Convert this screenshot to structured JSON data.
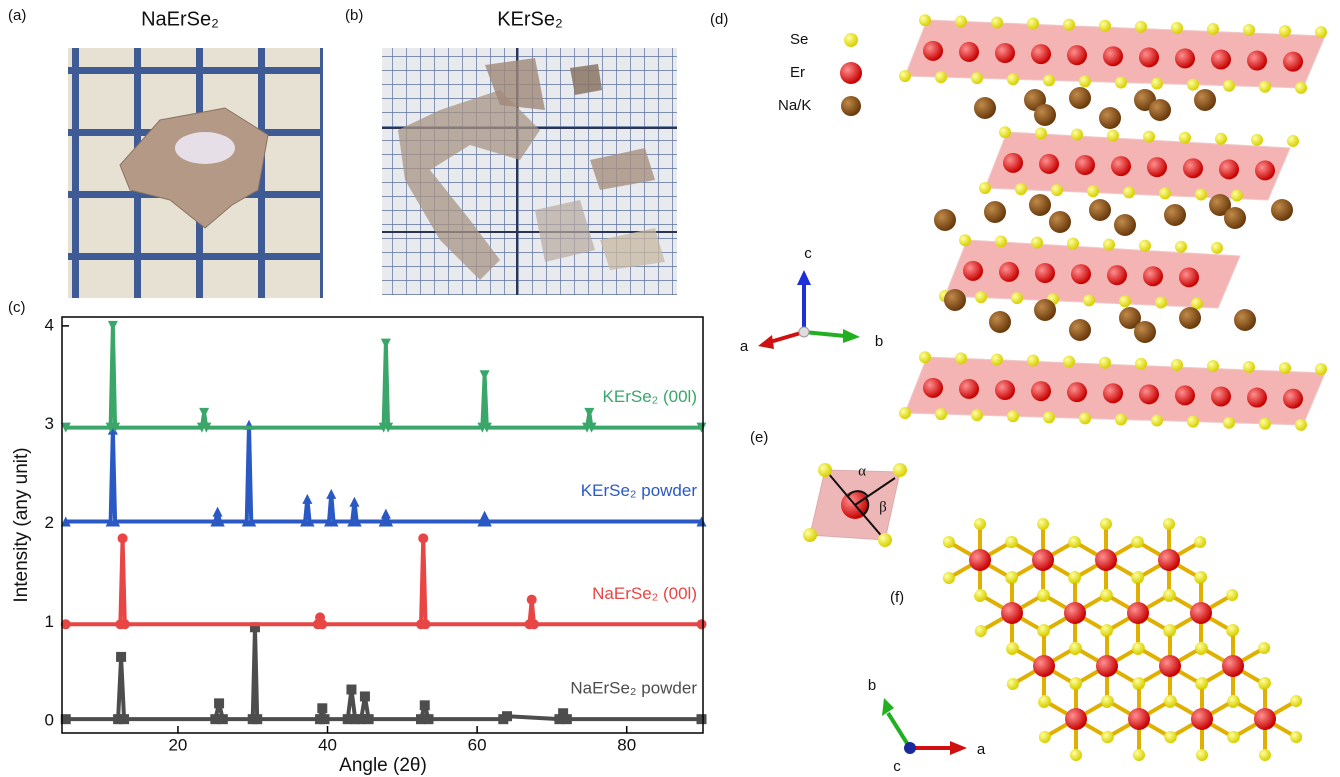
{
  "panels": {
    "a": {
      "label": "(a)",
      "title": "NaErSe₂"
    },
    "b": {
      "label": "(b)",
      "title": "KErSe₂"
    },
    "c": {
      "label": "(c)"
    },
    "d": {
      "label": "(d)",
      "legend": [
        "Se",
        "Er",
        "Na/K"
      ],
      "axes": [
        "c",
        "a",
        "b"
      ]
    },
    "e": {
      "label": "(e)",
      "angles": [
        "α",
        "β"
      ]
    },
    "f": {
      "label": "(f)",
      "axes": [
        "b",
        "a",
        "c"
      ]
    }
  },
  "chart_data": {
    "type": "line",
    "xlabel": "Angle (2θ)",
    "ylabel": "Intensity (any unit)",
    "xlim": [
      4.5,
      90.2
    ],
    "ylim": [
      -0.12,
      4.09
    ],
    "xticks": [
      20,
      40,
      60,
      80
    ],
    "yticks": [
      0,
      1,
      2,
      3,
      4
    ],
    "series": [
      {
        "name": "NaErSe₂ powder",
        "color": "#4d4d4d",
        "marker": "square",
        "x": [
          5,
          12,
          12.4,
          12.8,
          25,
          25.5,
          26,
          30,
          30.3,
          30.6,
          39,
          39.3,
          39.6,
          42.7,
          43.2,
          43.7,
          44.5,
          45,
          45.5,
          52.5,
          53,
          53.5,
          63.5,
          64,
          71,
          71.5,
          72,
          90
        ],
        "values": [
          0.02,
          0.02,
          0.65,
          0.02,
          0.02,
          0.18,
          0.02,
          0.02,
          0.95,
          0.02,
          0.02,
          0.13,
          0.02,
          0.02,
          0.32,
          0.02,
          0.02,
          0.25,
          0.02,
          0.02,
          0.16,
          0.02,
          0.02,
          0.05,
          0.02,
          0.08,
          0.02,
          0.02
        ]
      },
      {
        "name": "NaErSe₂ (00l)",
        "color": "#e84545",
        "marker": "circle",
        "x": [
          5,
          12.3,
          12.6,
          12.9,
          38.7,
          39,
          39.3,
          52.5,
          52.8,
          53.1,
          67,
          67.3,
          67.6,
          90
        ],
        "values": [
          0.98,
          0.98,
          1.85,
          0.98,
          0.98,
          1.05,
          0.98,
          0.98,
          1.85,
          0.98,
          0.98,
          1.23,
          0.98,
          0.98
        ]
      },
      {
        "name": "KErSe₂ powder",
        "color": "#2b59c3",
        "marker": "triangle-up",
        "x": [
          5,
          11,
          11.3,
          11.6,
          25,
          25.3,
          25.6,
          29.2,
          29.5,
          29.8,
          37,
          37.3,
          37.6,
          40.2,
          40.5,
          40.8,
          43.3,
          43.6,
          43.9,
          47.5,
          47.8,
          48.1,
          60.7,
          61,
          61.3,
          90
        ],
        "values": [
          2.02,
          2.02,
          2.95,
          2.02,
          2.02,
          2.12,
          2.02,
          2.02,
          3.0,
          2.02,
          2.02,
          2.25,
          2.02,
          2.02,
          2.3,
          2.02,
          2.02,
          2.22,
          2.02,
          2.02,
          2.1,
          2.02,
          2.02,
          2.08,
          2.02,
          2.02
        ]
      },
      {
        "name": "KErSe₂ (00l)",
        "color": "#3aa66a",
        "marker": "triangle-down",
        "x": [
          5,
          11,
          11.3,
          11.6,
          23.2,
          23.5,
          23.8,
          47.5,
          47.8,
          48.1,
          60.7,
          61,
          61.3,
          74.7,
          75,
          75.3,
          90
        ],
        "values": [
          2.97,
          2.97,
          4.0,
          2.97,
          2.97,
          3.12,
          2.97,
          2.97,
          3.82,
          2.97,
          2.97,
          3.5,
          2.97,
          2.97,
          3.12,
          2.97,
          2.97
        ]
      }
    ]
  }
}
